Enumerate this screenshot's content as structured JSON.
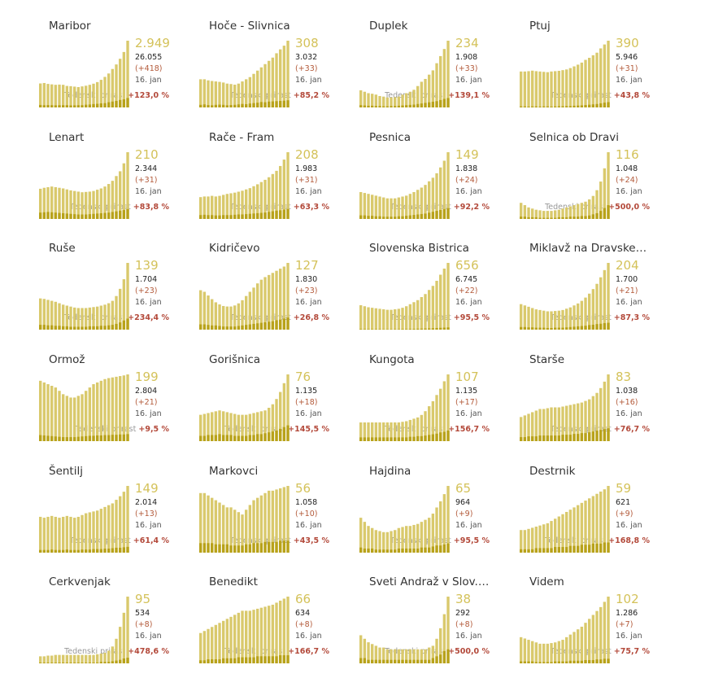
{
  "labels": {
    "growth_label": "Tedenski prirast"
  },
  "colors": {
    "total_bar": "#d9c96c",
    "new_bar": "#b8a21a",
    "active": "#d4c25a",
    "delta": "#b35a3a",
    "growth_value": "#b3493a"
  },
  "chart_data": [
    {
      "type": "bar",
      "title": "Maribor",
      "active": "2.949",
      "total": "26.055",
      "delta": "(+418)",
      "date": "16. jan",
      "growth": "+123,0 %",
      "values": [
        1060,
        1080,
        1040,
        1020,
        1000,
        1010,
        1000,
        950,
        940,
        920,
        900,
        930,
        960,
        1000,
        1050,
        1120,
        1220,
        1350,
        1500,
        1700,
        1900,
        2150,
        2450,
        2949
      ],
      "new_values": [
        110,
        100,
        105,
        100,
        95,
        100,
        100,
        100,
        90,
        95,
        100,
        100,
        120,
        130,
        150,
        160,
        180,
        190,
        230,
        260,
        290,
        330,
        360,
        418
      ]
    },
    {
      "type": "bar",
      "title": "Hoče - Slivnica",
      "active": "308",
      "total": "3.032",
      "delta": "(+33)",
      "date": "16. jan",
      "growth": "+85,2 %",
      "values": [
        130,
        130,
        125,
        122,
        120,
        118,
        115,
        110,
        108,
        105,
        110,
        120,
        130,
        140,
        155,
        170,
        185,
        200,
        215,
        230,
        250,
        268,
        285,
        308
      ],
      "new_values": [
        12,
        14,
        11,
        10,
        12,
        13,
        12,
        10,
        11,
        12,
        14,
        16,
        15,
        18,
        20,
        22,
        25,
        24,
        27,
        28,
        29,
        30,
        31,
        33
      ]
    },
    {
      "type": "bar",
      "title": "Duplek",
      "active": "234",
      "total": "1.908",
      "delta": "(+33)",
      "date": "16. jan",
      "growth": "+139,1 %",
      "values": [
        60,
        55,
        50,
        48,
        45,
        40,
        38,
        35,
        35,
        36,
        38,
        45,
        50,
        55,
        62,
        75,
        90,
        100,
        115,
        130,
        155,
        180,
        205,
        234
      ],
      "new_values": [
        8,
        7,
        6,
        6,
        5,
        5,
        4,
        4,
        5,
        5,
        6,
        7,
        8,
        9,
        10,
        12,
        14,
        16,
        18,
        20,
        22,
        26,
        30,
        33
      ]
    },
    {
      "type": "bar",
      "title": "Ptuj",
      "active": "390",
      "total": "5.946",
      "delta": "(+31)",
      "date": "16. jan",
      "growth": "+43,8 %",
      "values": [
        210,
        210,
        212,
        215,
        212,
        210,
        208,
        206,
        210,
        212,
        214,
        218,
        222,
        230,
        240,
        250,
        262,
        278,
        290,
        305,
        320,
        345,
        368,
        390
      ],
      "new_values": [
        6,
        6,
        5,
        6,
        6,
        5,
        6,
        6,
        5,
        6,
        7,
        7,
        8,
        8,
        10,
        11,
        12,
        14,
        16,
        18,
        20,
        24,
        28,
        31
      ]
    },
    {
      "type": "bar",
      "title": "Lenart",
      "active": "210",
      "total": "2.344",
      "delta": "(+31)",
      "date": "16. jan",
      "growth": "+83,8 %",
      "values": [
        95,
        98,
        100,
        102,
        100,
        98,
        96,
        93,
        90,
        88,
        86,
        84,
        85,
        86,
        88,
        92,
        96,
        102,
        110,
        120,
        135,
        150,
        175,
        210
      ],
      "new_values": [
        20,
        21,
        22,
        21,
        20,
        19,
        18,
        17,
        16,
        15,
        14,
        14,
        14,
        15,
        16,
        17,
        18,
        19,
        20,
        22,
        24,
        26,
        28,
        31
      ]
    },
    {
      "type": "bar",
      "title": "Rače - Fram",
      "active": "208",
      "total": "1.983",
      "delta": "(+31)",
      "date": "16. jan",
      "growth": "+63,3 %",
      "values": [
        68,
        70,
        70,
        72,
        70,
        72,
        75,
        78,
        80,
        82,
        85,
        88,
        92,
        96,
        102,
        108,
        115,
        122,
        130,
        140,
        150,
        165,
        185,
        208
      ],
      "new_values": [
        12,
        13,
        12,
        12,
        11,
        11,
        12,
        12,
        12,
        13,
        14,
        14,
        15,
        16,
        17,
        18,
        19,
        20,
        22,
        24,
        26,
        27,
        29,
        31
      ]
    },
    {
      "type": "bar",
      "title": "Pesnica",
      "active": "149",
      "total": "1.838",
      "delta": "(+24)",
      "date": "16. jan",
      "growth": "+92,2 %",
      "values": [
        60,
        58,
        56,
        54,
        52,
        50,
        48,
        46,
        46,
        46,
        48,
        50,
        52,
        56,
        60,
        65,
        70,
        76,
        84,
        92,
        102,
        115,
        130,
        149
      ],
      "new_values": [
        8,
        8,
        7,
        7,
        6,
        6,
        5,
        5,
        5,
        5,
        6,
        6,
        7,
        8,
        9,
        10,
        11,
        12,
        14,
        16,
        18,
        20,
        22,
        24
      ]
    },
    {
      "type": "bar",
      "title": "Selnica ob Dravi",
      "active": "116",
      "total": "1.048",
      "delta": "(+24)",
      "date": "16. jan",
      "growth": "+500,0 %",
      "values": [
        28,
        24,
        20,
        18,
        16,
        15,
        14,
        14,
        14,
        15,
        16,
        18,
        20,
        22,
        24,
        26,
        28,
        30,
        34,
        40,
        50,
        65,
        88,
        116
      ],
      "new_values": [
        4,
        4,
        3,
        3,
        3,
        2,
        2,
        2,
        2,
        2,
        3,
        3,
        3,
        4,
        4,
        4,
        5,
        5,
        6,
        8,
        10,
        14,
        19,
        24
      ]
    },
    {
      "type": "bar",
      "title": "Ruše",
      "active": "139",
      "total": "1.704",
      "delta": "(+23)",
      "date": "16. jan",
      "growth": "+234,4 %",
      "values": [
        65,
        64,
        62,
        60,
        58,
        55,
        52,
        50,
        48,
        46,
        45,
        45,
        45,
        46,
        47,
        48,
        50,
        52,
        55,
        60,
        70,
        85,
        105,
        139
      ],
      "new_values": [
        10,
        10,
        9,
        9,
        8,
        8,
        7,
        7,
        6,
        6,
        6,
        6,
        6,
        7,
        7,
        7,
        8,
        8,
        9,
        10,
        12,
        15,
        19,
        23
      ]
    },
    {
      "type": "bar",
      "title": "Kidričevo",
      "active": "127",
      "total": "1.830",
      "delta": "(+23)",
      "date": "16. jan",
      "growth": "+26,8 %",
      "values": [
        75,
        72,
        65,
        58,
        52,
        48,
        45,
        44,
        44,
        46,
        50,
        56,
        64,
        72,
        80,
        88,
        95,
        100,
        104,
        108,
        112,
        116,
        120,
        127
      ],
      "new_values": [
        10,
        10,
        9,
        8,
        8,
        7,
        6,
        6,
        6,
        6,
        7,
        8,
        9,
        10,
        11,
        12,
        13,
        14,
        15,
        16,
        18,
        19,
        21,
        23
      ]
    },
    {
      "type": "bar",
      "title": "Slovenska Bistrica",
      "active": "656",
      "total": "6.745",
      "delta": "(+22)",
      "date": "16. jan",
      "growth": "+95,5 %",
      "values": [
        240,
        230,
        220,
        215,
        210,
        205,
        200,
        195,
        195,
        200,
        205,
        215,
        230,
        250,
        270,
        290,
        320,
        350,
        390,
        430,
        480,
        540,
        600,
        656
      ],
      "new_values": [
        6,
        6,
        5,
        5,
        5,
        5,
        4,
        4,
        4,
        5,
        5,
        6,
        6,
        7,
        8,
        9,
        10,
        11,
        12,
        14,
        16,
        18,
        20,
        22
      ]
    },
    {
      "type": "bar",
      "title": "Miklavž na Dravske…",
      "active": "204",
      "total": "1.700",
      "delta": "(+21)",
      "date": "16. jan",
      "growth": "+87,3 %",
      "values": [
        78,
        74,
        70,
        66,
        62,
        60,
        58,
        56,
        56,
        57,
        58,
        60,
        64,
        68,
        74,
        80,
        88,
        98,
        110,
        124,
        140,
        160,
        182,
        204
      ],
      "new_values": [
        8,
        8,
        7,
        7,
        6,
        6,
        6,
        5,
        5,
        6,
        6,
        6,
        7,
        8,
        9,
        10,
        11,
        12,
        14,
        15,
        17,
        18,
        20,
        21
      ]
    },
    {
      "type": "bar",
      "title": "Ormož",
      "active": "199",
      "total": "2.804",
      "delta": "(+21)",
      "date": "16. jan",
      "growth": "+9,5 %",
      "values": [
        180,
        175,
        170,
        165,
        160,
        150,
        140,
        135,
        130,
        130,
        135,
        140,
        150,
        160,
        170,
        175,
        180,
        185,
        188,
        190,
        192,
        194,
        196,
        199
      ],
      "new_values": [
        18,
        17,
        16,
        15,
        14,
        13,
        12,
        12,
        12,
        12,
        13,
        14,
        15,
        16,
        16,
        17,
        17,
        18,
        18,
        19,
        19,
        20,
        20,
        21
      ]
    },
    {
      "type": "bar",
      "title": "Gorišnica",
      "active": "76",
      "total": "1.135",
      "delta": "(+18)",
      "date": "16. jan",
      "growth": "+145,5 %",
      "values": [
        30,
        31,
        32,
        33,
        34,
        35,
        34,
        33,
        32,
        31,
        30,
        30,
        30,
        31,
        32,
        33,
        34,
        35,
        38,
        42,
        48,
        56,
        66,
        76
      ],
      "new_values": [
        6,
        6,
        7,
        7,
        7,
        8,
        7,
        7,
        7,
        6,
        6,
        6,
        6,
        7,
        7,
        8,
        8,
        9,
        10,
        11,
        12,
        14,
        16,
        18
      ]
    },
    {
      "type": "bar",
      "title": "Kungota",
      "active": "107",
      "total": "1.135",
      "delta": "(+17)",
      "date": "16. jan",
      "growth": "+156,7 %",
      "values": [
        30,
        30,
        30,
        30,
        30,
        30,
        30,
        30,
        30,
        30,
        30,
        31,
        32,
        34,
        36,
        38,
        42,
        48,
        56,
        64,
        74,
        84,
        96,
        107
      ],
      "new_values": [
        6,
        6,
        6,
        6,
        6,
        6,
        6,
        6,
        6,
        6,
        6,
        6,
        6,
        7,
        7,
        8,
        8,
        9,
        10,
        11,
        12,
        14,
        15,
        17
      ]
    },
    {
      "type": "bar",
      "title": "Starše",
      "active": "83",
      "total": "1.038",
      "delta": "(+16)",
      "date": "16. jan",
      "growth": "+76,7 %",
      "values": [
        30,
        32,
        34,
        36,
        38,
        40,
        40,
        41,
        42,
        42,
        42,
        43,
        44,
        45,
        46,
        47,
        48,
        50,
        52,
        56,
        60,
        66,
        74,
        83
      ],
      "new_values": [
        5,
        5,
        6,
        6,
        6,
        7,
        7,
        7,
        7,
        7,
        7,
        8,
        8,
        8,
        9,
        9,
        10,
        10,
        11,
        12,
        13,
        14,
        15,
        16
      ]
    },
    {
      "type": "bar",
      "title": "Šentilj",
      "active": "149",
      "total": "2.014",
      "delta": "(+13)",
      "date": "16. jan",
      "growth": "+61,4 %",
      "values": [
        80,
        78,
        80,
        82,
        80,
        78,
        80,
        82,
        80,
        78,
        80,
        84,
        88,
        90,
        92,
        94,
        98,
        102,
        106,
        110,
        118,
        126,
        136,
        149
      ],
      "new_values": [
        6,
        6,
        6,
        7,
        6,
        6,
        6,
        7,
        6,
        6,
        6,
        7,
        7,
        7,
        8,
        8,
        8,
        9,
        9,
        10,
        11,
        11,
        12,
        13
      ]
    },
    {
      "type": "bar",
      "title": "Markovci",
      "active": "56",
      "total": "1.058",
      "delta": "(+10)",
      "date": "16. jan",
      "growth": "+43,5 %",
      "values": [
        50,
        50,
        48,
        46,
        44,
        42,
        40,
        38,
        38,
        36,
        34,
        32,
        36,
        40,
        44,
        46,
        48,
        50,
        52,
        52,
        53,
        54,
        55,
        56
      ],
      "new_values": [
        8,
        8,
        8,
        8,
        7,
        7,
        7,
        7,
        6,
        6,
        6,
        6,
        7,
        7,
        8,
        8,
        8,
        9,
        9,
        9,
        9,
        10,
        10,
        10
      ]
    },
    {
      "type": "bar",
      "title": "Hajdina",
      "active": "65",
      "total": "964",
      "delta": "(+9)",
      "date": "16. jan",
      "growth": "+95,5 %",
      "values": [
        34,
        30,
        26,
        24,
        22,
        21,
        20,
        20,
        21,
        22,
        24,
        25,
        26,
        26,
        27,
        28,
        30,
        32,
        34,
        38,
        44,
        50,
        57,
        65
      ],
      "new_values": [
        5,
        4,
        4,
        4,
        3,
        3,
        3,
        3,
        3,
        3,
        4,
        4,
        4,
        4,
        4,
        4,
        5,
        5,
        5,
        6,
        7,
        7,
        8,
        9
      ]
    },
    {
      "type": "bar",
      "title": "Destrnik",
      "active": "59",
      "total": "621",
      "delta": "(+9)",
      "date": "16. jan",
      "growth": "+168,8 %",
      "values": [
        20,
        20,
        21,
        22,
        23,
        24,
        25,
        26,
        28,
        30,
        32,
        34,
        36,
        38,
        40,
        42,
        44,
        46,
        48,
        50,
        52,
        54,
        56,
        59
      ],
      "new_values": [
        3,
        3,
        3,
        3,
        4,
        4,
        4,
        4,
        4,
        5,
        5,
        5,
        5,
        6,
        6,
        6,
        7,
        7,
        7,
        8,
        8,
        8,
        9,
        9
      ]
    },
    {
      "type": "bar",
      "title": "Cerkvenjak",
      "active": "95",
      "total": "534",
      "delta": "(+8)",
      "date": "16. jan",
      "growth": "+478,6 %",
      "values": [
        10,
        10,
        11,
        11,
        12,
        12,
        12,
        12,
        12,
        12,
        12,
        12,
        12,
        12,
        12,
        13,
        14,
        15,
        18,
        24,
        35,
        52,
        72,
        95
      ],
      "new_values": [
        1,
        1,
        1,
        1,
        1,
        1,
        1,
        1,
        1,
        1,
        1,
        1,
        1,
        1,
        1,
        1,
        2,
        2,
        2,
        3,
        4,
        5,
        7,
        8
      ]
    },
    {
      "type": "bar",
      "title": "Benedikt",
      "active": "66",
      "total": "634",
      "delta": "(+8)",
      "date": "16. jan",
      "growth": "+166,7 %",
      "values": [
        30,
        32,
        34,
        36,
        38,
        40,
        42,
        44,
        46,
        48,
        50,
        52,
        52,
        52,
        53,
        54,
        55,
        56,
        57,
        58,
        60,
        62,
        64,
        66
      ],
      "new_values": [
        3,
        3,
        4,
        4,
        4,
        4,
        5,
        5,
        5,
        5,
        6,
        6,
        6,
        6,
        6,
        7,
        7,
        7,
        7,
        7,
        7,
        8,
        8,
        8
      ]
    },
    {
      "type": "bar",
      "title": "Sveti Andraž v Slov.…",
      "active": "38",
      "total": "292",
      "delta": "(+8)",
      "date": "16. jan",
      "growth": "+500,0 %",
      "values": [
        16,
        14,
        12,
        11,
        10,
        9,
        9,
        8,
        8,
        8,
        8,
        8,
        8,
        8,
        8,
        8,
        8,
        8,
        9,
        10,
        14,
        20,
        28,
        38
      ],
      "new_values": [
        3,
        3,
        2,
        2,
        2,
        2,
        2,
        2,
        2,
        2,
        2,
        2,
        2,
        2,
        2,
        2,
        2,
        2,
        2,
        3,
        4,
        5,
        7,
        8
      ]
    },
    {
      "type": "bar",
      "title": "Videm",
      "active": "102",
      "total": "1.286",
      "delta": "(+7)",
      "date": "16. jan",
      "growth": "+75,7 %",
      "values": [
        40,
        38,
        36,
        34,
        32,
        30,
        30,
        30,
        31,
        32,
        34,
        36,
        40,
        44,
        48,
        52,
        56,
        62,
        68,
        74,
        80,
        86,
        94,
        102
      ],
      "new_values": [
        3,
        3,
        3,
        3,
        2,
        2,
        2,
        2,
        2,
        3,
        3,
        3,
        3,
        4,
        4,
        4,
        4,
        5,
        5,
        5,
        6,
        6,
        7,
        7
      ]
    }
  ]
}
